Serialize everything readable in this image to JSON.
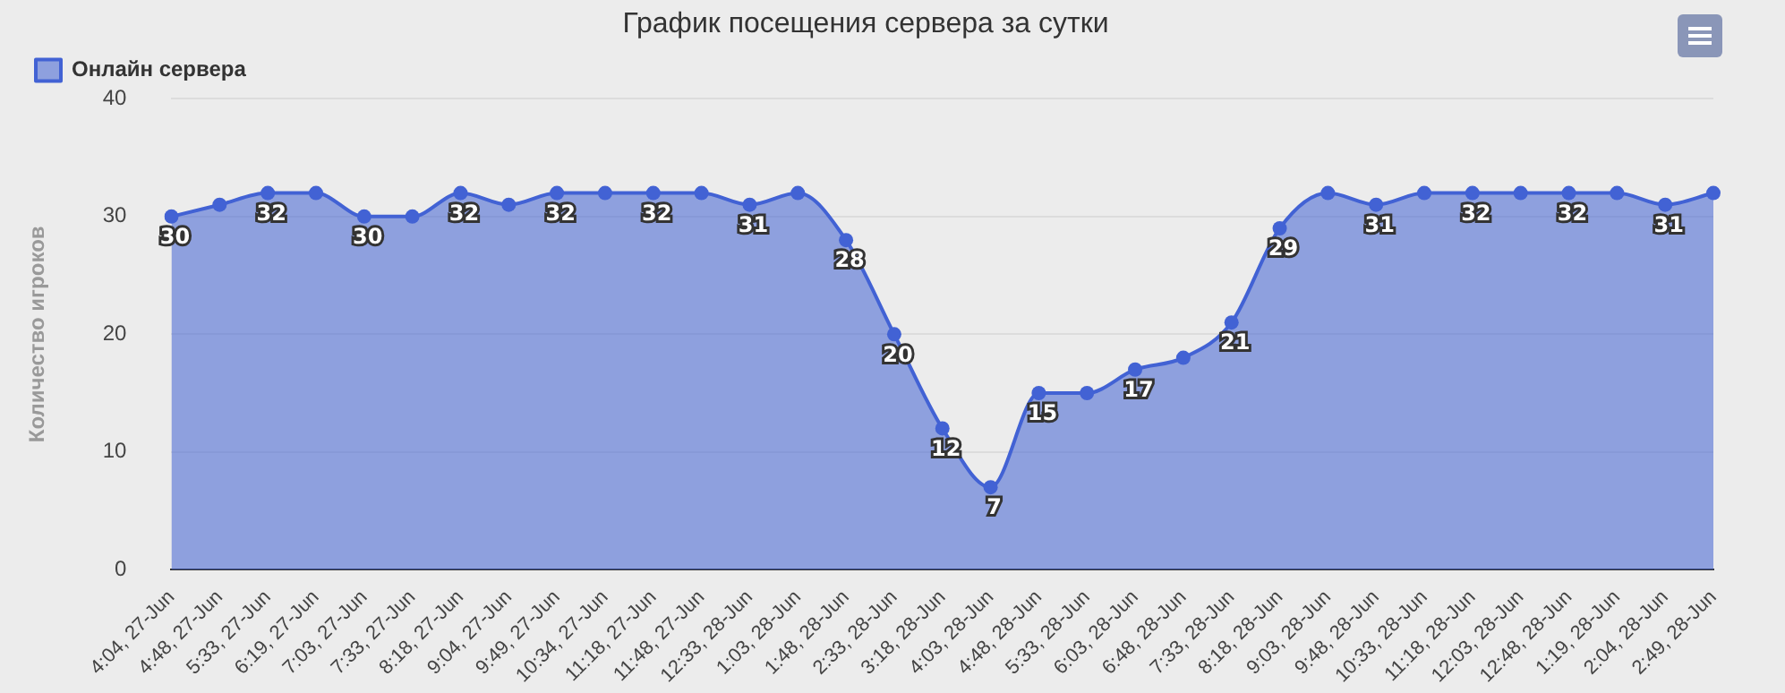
{
  "chart_data": {
    "type": "area",
    "title": "График посещения сервера за сутки",
    "ylabel": "Количество игроков",
    "categories": [
      "4:04, 27-Jun",
      "4:48, 27-Jun",
      "5:33, 27-Jun",
      "6:19, 27-Jun",
      "7:03, 27-Jun",
      "7:33, 27-Jun",
      "8:18, 27-Jun",
      "9:04, 27-Jun",
      "9:49, 27-Jun",
      "10:34, 27-Jun",
      "11:18, 27-Jun",
      "11:48, 27-Jun",
      "12:33, 28-Jun",
      "1:03, 28-Jun",
      "1:48, 28-Jun",
      "2:33, 28-Jun",
      "3:18, 28-Jun",
      "4:03, 28-Jun",
      "4:48, 28-Jun",
      "5:33, 28-Jun",
      "6:03, 28-Jun",
      "6:48, 28-Jun",
      "7:33, 28-Jun",
      "8:18, 28-Jun",
      "9:03, 28-Jun",
      "9:48, 28-Jun",
      "10:33, 28-Jun",
      "11:18, 28-Jun",
      "12:03, 28-Jun",
      "12:48, 28-Jun",
      "1:19, 28-Jun",
      "2:04, 28-Jun",
      "2:49, 28-Jun"
    ],
    "series": [
      {
        "name": "Онлайн сервера",
        "color": "#4262d4",
        "values": [
          30,
          31,
          32,
          32,
          30,
          30,
          32,
          31,
          32,
          32,
          32,
          32,
          31,
          32,
          28,
          20,
          12,
          7,
          15,
          15,
          17,
          18,
          21,
          29,
          32,
          31,
          32,
          32,
          32,
          32,
          32,
          31,
          32
        ],
        "value_labels": [
          "30",
          null,
          "32",
          null,
          "30",
          null,
          "32",
          null,
          "32",
          null,
          "32",
          null,
          "31",
          null,
          "28",
          "20",
          "12",
          "7",
          "15",
          null,
          "17",
          null,
          "21",
          "29",
          null,
          "31",
          null,
          "32",
          null,
          "32",
          null,
          "31",
          null
        ]
      }
    ],
    "ylim": [
      0,
      40
    ],
    "yticks": [
      0,
      10,
      20,
      30,
      40
    ],
    "grid": "y",
    "legend": "top left",
    "marker": "circle"
  }
}
